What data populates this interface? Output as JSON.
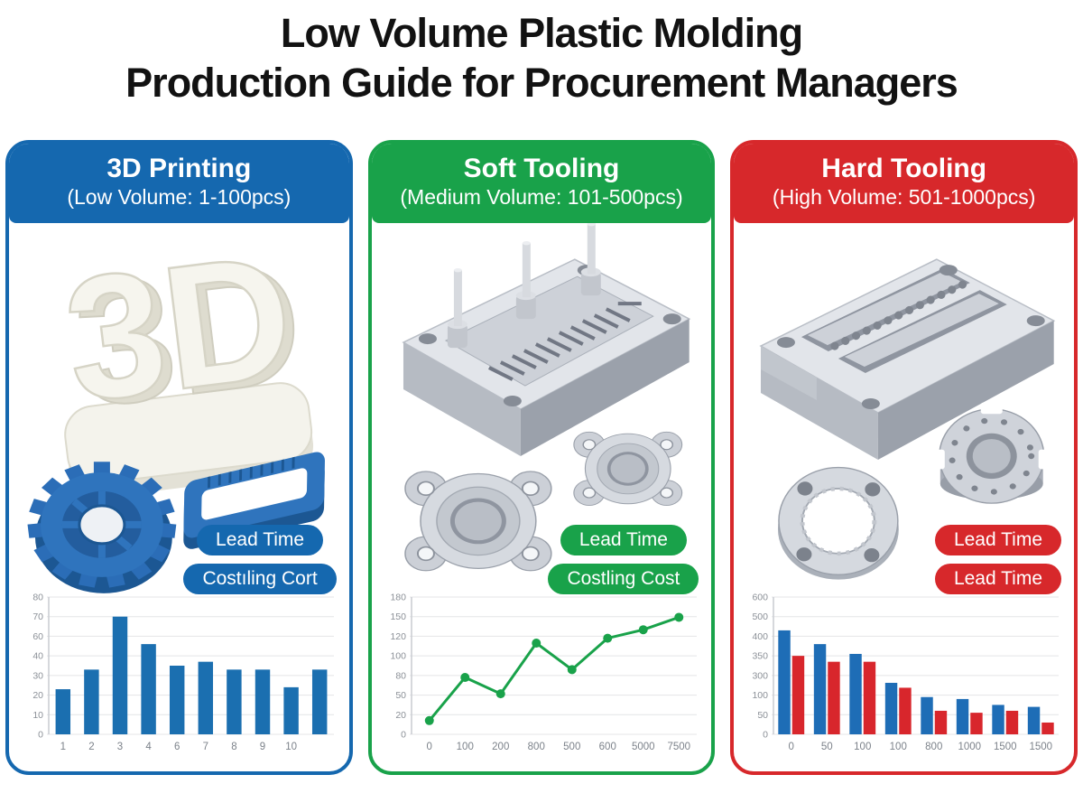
{
  "title": {
    "line1": "Low Volume Plastic Molding",
    "line2": "Production Guide for Procurement Managers"
  },
  "columns": [
    {
      "accent": "#1568af",
      "header": {
        "title": "3D Printing",
        "subtitle": "(Low Volume: 1-100pcs)"
      },
      "badges": [
        "Lead Time",
        "Costıling Cort"
      ]
    },
    {
      "accent": "#19a24a",
      "header": {
        "title": "Soft Tooling",
        "subtitle": "(Medium Volume: 101-500pcs)"
      },
      "badges": [
        "Lead Time",
        "Costling Cost"
      ]
    },
    {
      "accent": "#d7282b",
      "header": {
        "title": "Hard Tooling",
        "subtitle": "(High Volume: 501-1000pcs)"
      },
      "badges": [
        "Lead Time",
        "Lead Time"
      ]
    }
  ],
  "chart_data": [
    {
      "type": "bar",
      "title": "",
      "color": "#1b6fb0",
      "y_tick_labels": [
        "80",
        "70",
        "60",
        "40",
        "30",
        "20",
        "10",
        "0"
      ],
      "x_tick_labels": [
        "1",
        "2",
        "3",
        "4",
        "6",
        "7",
        "8",
        "9",
        "10",
        ""
      ],
      "categories": [
        "1",
        "2",
        "3",
        "4",
        "6",
        "7",
        "8",
        "9",
        "10",
        ""
      ],
      "values": [
        23,
        33,
        70,
        52,
        35,
        37,
        33,
        33,
        24,
        33
      ],
      "ylim": [
        0,
        80
      ],
      "grid": true,
      "legend": "none"
    },
    {
      "type": "line",
      "title": "",
      "color": "#19a24a",
      "y_tick_labels": [
        "180",
        "150",
        "120",
        "100",
        "80",
        "50",
        "20",
        "0"
      ],
      "x_tick_labels": [
        "0",
        "100",
        "200",
        "800",
        "500",
        "600",
        "5000",
        "7500"
      ],
      "x": [
        "0",
        "100",
        "200",
        "800",
        "500",
        "600",
        "5000",
        "7500"
      ],
      "values": [
        14,
        77,
        52,
        113,
        86,
        118,
        130,
        149
      ],
      "ylim": [
        0,
        180
      ],
      "grid": true,
      "legend": "none"
    },
    {
      "type": "grouped-bar",
      "title": "",
      "colors": [
        "#1e6db6",
        "#d8262c"
      ],
      "y_tick_labels": [
        "600",
        "500",
        "400",
        "350",
        "300",
        "100",
        "50",
        "0"
      ],
      "x_tick_labels": [
        "0",
        "50",
        "100",
        "100",
        "800",
        "1000",
        "1500",
        "1500"
      ],
      "series": [
        {
          "name": "blue",
          "values": [
            430,
            380,
            355,
            225,
            95,
            90,
            75,
            70
          ]
        },
        {
          "name": "red",
          "values": [
            350,
            335,
            335,
            175,
            60,
            55,
            60,
            30
          ]
        }
      ],
      "ylim": [
        0,
        600
      ],
      "grid": true,
      "legend": "none"
    }
  ]
}
